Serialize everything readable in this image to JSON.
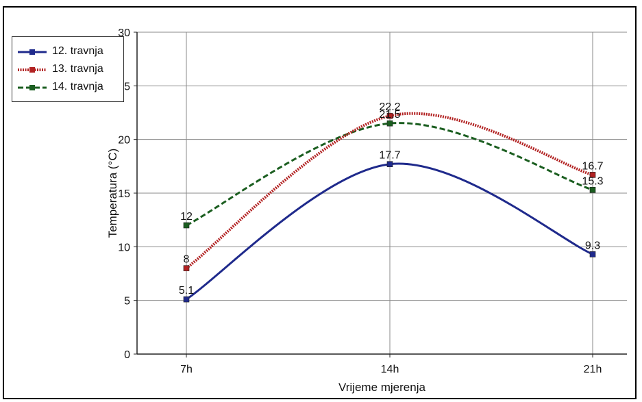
{
  "chart_data": {
    "type": "line",
    "categories": [
      "7h",
      "14h",
      "21h"
    ],
    "xlabel": "Vrijeme mjerenja",
    "ylabel": "Temperatura (°C)",
    "ylim": [
      0,
      30
    ],
    "yticks": [
      0,
      5,
      10,
      15,
      20,
      25,
      30
    ],
    "grid": true,
    "legend_position": "top-left",
    "series": [
      {
        "name": "12. travnja",
        "values": [
          5.1,
          17.7,
          9.3
        ],
        "labels": [
          "5.1",
          "17.7",
          "9.3"
        ],
        "color": "#1f2a8c",
        "style": "solid"
      },
      {
        "name": "13. travnja",
        "values": [
          8,
          22.2,
          16.7
        ],
        "labels": [
          "8",
          "22.2",
          "16.7"
        ],
        "color": "#b22222",
        "style": "dotted"
      },
      {
        "name": "14. travnja",
        "values": [
          12,
          21.5,
          15.3
        ],
        "labels": [
          "12",
          "21.5",
          "15.3"
        ],
        "color": "#1b5e20",
        "style": "dashed"
      }
    ]
  }
}
